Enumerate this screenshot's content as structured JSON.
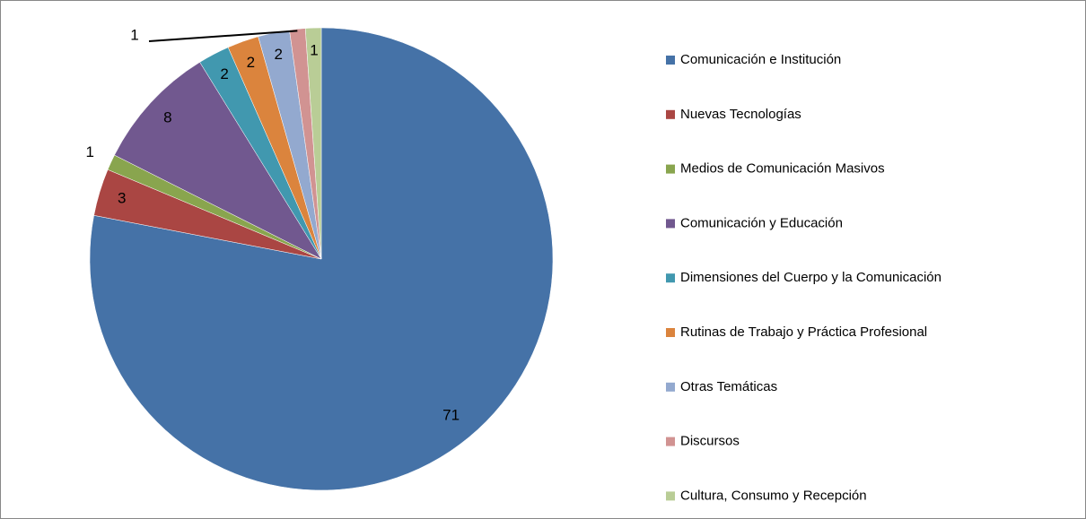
{
  "chart_data": {
    "type": "pie",
    "categories": [
      "Comunicación e Institución",
      "Nuevas Tecnologías",
      "Medios de Comunicación Masivos",
      "Comunicación y Educación",
      "Dimensiones del Cuerpo y la Comunicación",
      "Rutinas de Trabajo y Práctica Profesional",
      "Otras Temáticas",
      "Discursos",
      "Cultura, Consumo y Recepción"
    ],
    "values": [
      71,
      3,
      1,
      8,
      2,
      2,
      2,
      1,
      1
    ],
    "colors": [
      "#4572a7",
      "#aa4643",
      "#89a54e",
      "#71588f",
      "#4198af",
      "#db843d",
      "#93a9cf",
      "#d19392",
      "#b9cd96"
    ],
    "legend": "right"
  }
}
